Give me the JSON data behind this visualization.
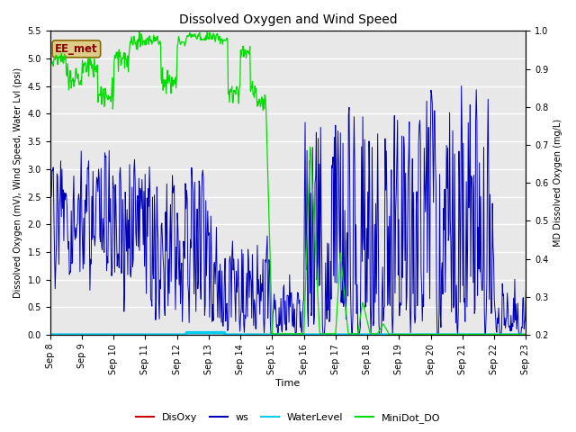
{
  "title": "Dissolved Oxygen and Wind Speed",
  "xlabel": "Time",
  "ylabel_left": "Dissolved Oxygen (mV), Wind Speed, Water Lvl (psi)",
  "ylabel_right": "MD Dissolved Oxygen (mg/L)",
  "annotation_text": "EE_met",
  "ylim_left": [
    0.0,
    5.5
  ],
  "ylim_right": [
    0.2,
    1.0
  ],
  "yticks_left": [
    0.0,
    0.5,
    1.0,
    1.5,
    2.0,
    2.5,
    3.0,
    3.5,
    4.0,
    4.5,
    5.0,
    5.5
  ],
  "yticks_right": [
    0.2,
    0.3,
    0.4,
    0.5,
    0.6,
    0.7,
    0.8,
    0.9,
    1.0
  ],
  "xtick_labels": [
    "Sep 8",
    "Sep 9",
    "Sep 10",
    "Sep 11",
    "Sep 12",
    "Sep 13",
    "Sep 14",
    "Sep 15",
    "Sep 16",
    "Sep 17",
    "Sep 18",
    "Sep 19",
    "Sep 20",
    "Sep 21",
    "Sep 22",
    "Sep 23"
  ],
  "colors": {
    "DisOxy": "#cc0000",
    "ws": "#0000bb",
    "WaterLevel": "#00ccee",
    "MiniDot_DO": "#00dd00"
  },
  "background_color": "#e8e8e8",
  "grid_color": "#ffffff",
  "annotation_box_facecolor": "#ddcc88",
  "annotation_box_edgecolor": "#886600",
  "annotation_text_color": "#880000"
}
